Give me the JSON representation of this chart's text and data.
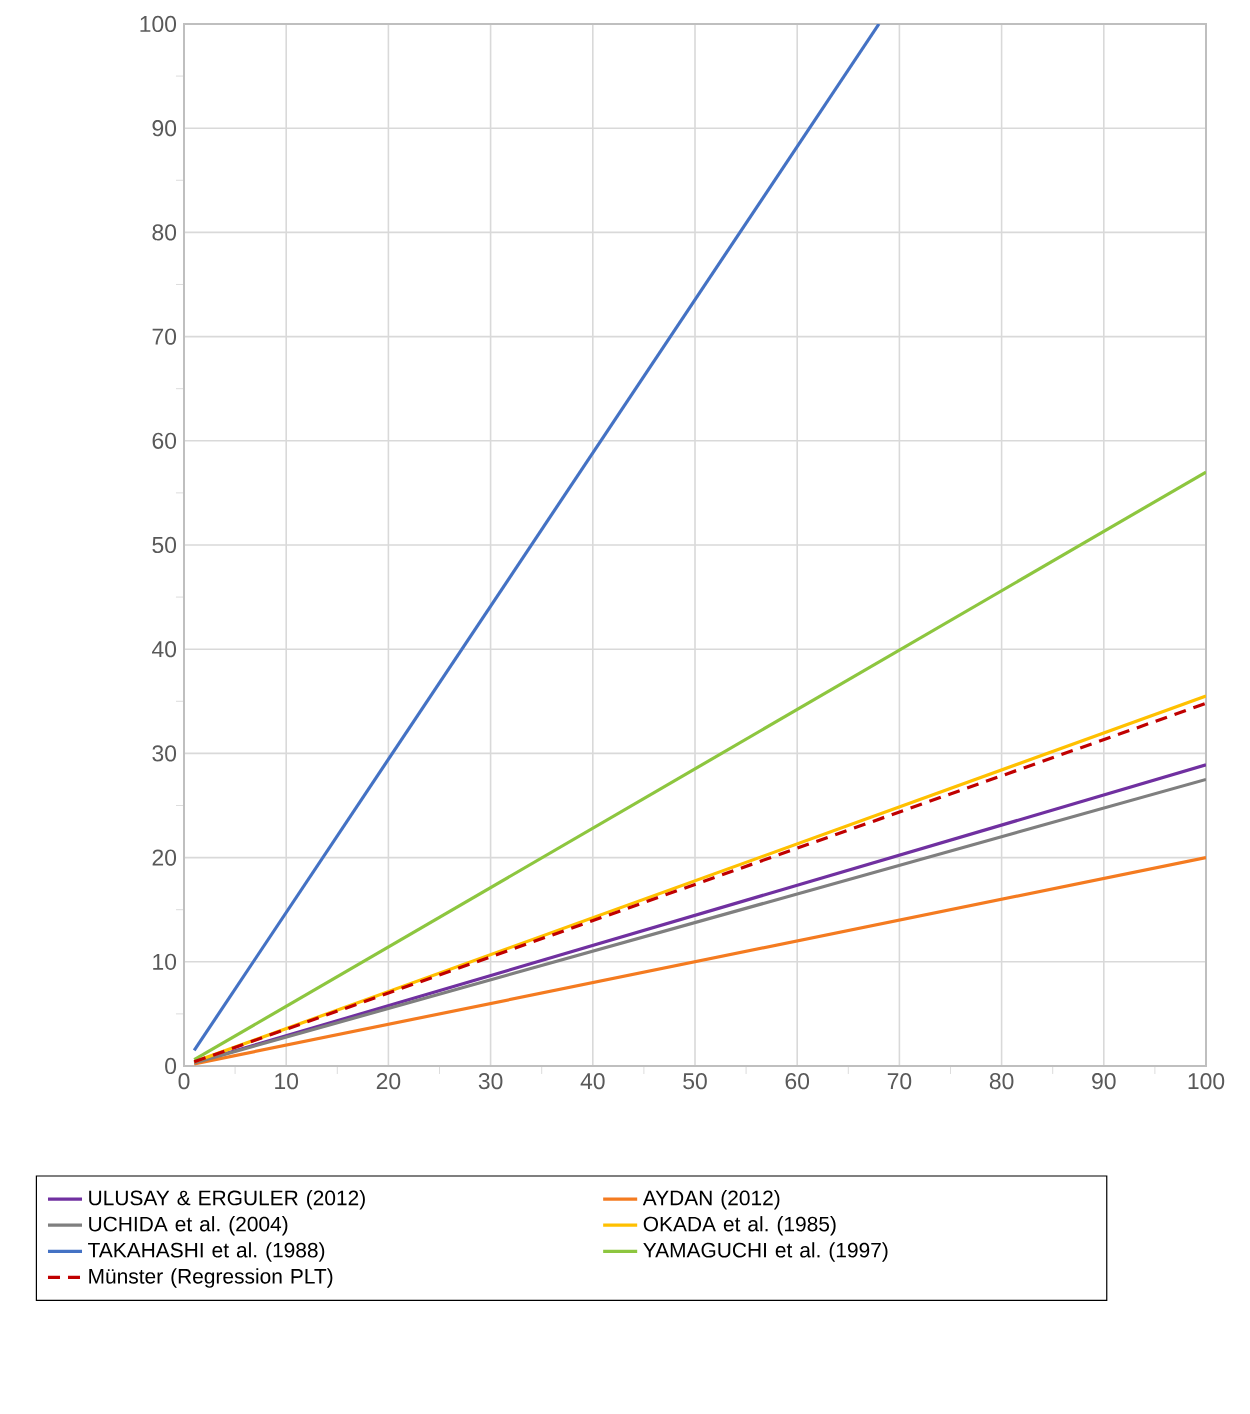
{
  "chart_data": {
    "type": "line",
    "xlim": [
      0,
      100
    ],
    "ylim": [
      0,
      100
    ],
    "xticks": [
      0,
      10,
      20,
      30,
      40,
      50,
      60,
      70,
      80,
      90,
      100
    ],
    "yticks": [
      0,
      10,
      20,
      30,
      40,
      50,
      60,
      70,
      80,
      90,
      100
    ],
    "grid": true,
    "legend": "bottom",
    "series": [
      {
        "name": "ULUSAY & ERGULER (2012)",
        "color": "#7030a0",
        "x": [
          1,
          100
        ],
        "values": [
          0.3,
          28.9
        ]
      },
      {
        "name": "AYDAN (2012)",
        "color": "#f47b20",
        "x": [
          1,
          100
        ],
        "values": [
          0.2,
          20
        ]
      },
      {
        "name": "UCHIDA et al. (2004)",
        "color": "#7f7f7f",
        "x": [
          1,
          100
        ],
        "values": [
          0.3,
          27.5
        ]
      },
      {
        "name": "OKADA et al. (1985)",
        "color": "#ffc000",
        "x": [
          1,
          100
        ],
        "values": [
          0.4,
          35.5
        ]
      },
      {
        "name": "TAKAHASHI et al. (1988)",
        "color": "#4472c4",
        "x": [
          1,
          68
        ],
        "values": [
          1.5,
          100
        ]
      },
      {
        "name": "YAMAGUCHI et al. (1997)",
        "color": "#8dc63f",
        "x": [
          1,
          100
        ],
        "values": [
          0.6,
          57
        ]
      },
      {
        "name": "Münster (Regression PLT)",
        "color": "#c00000",
        "x": [
          1,
          100
        ],
        "values": [
          0.4,
          34.8
        ],
        "line_style": "dashed"
      }
    ]
  }
}
